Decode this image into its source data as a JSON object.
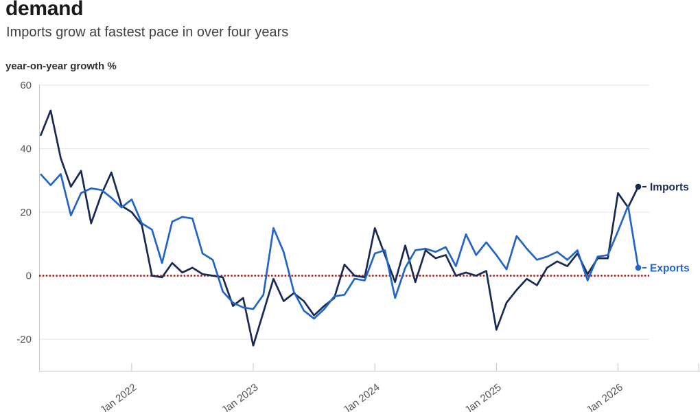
{
  "header": {
    "title": "demand",
    "subtitle": "Imports grow at fastest pace in over four years"
  },
  "chart": {
    "axis_unit_label": "year-on-year growth %"
  },
  "chart_data": {
    "type": "line",
    "title": "demand",
    "subtitle": "Imports grow at fastest pace in over four years",
    "ylabel": "year-on-year growth %",
    "xlabel": "",
    "y_ticks": [
      60,
      40,
      20,
      0,
      -20
    ],
    "ylim": [
      -30,
      62
    ],
    "grid": "horizontal",
    "legend_position": "line-end-labels",
    "zero_line": {
      "style": "dotted",
      "color": "#9d2c28"
    },
    "x_tick_labels": [
      "Jan 2022",
      "Jan 2023",
      "Jan 2024",
      "Jan 2025",
      "Jan 2026"
    ],
    "months": [
      "2021-04",
      "2021-05",
      "2021-06",
      "2021-07",
      "2021-08",
      "2021-09",
      "2021-10",
      "2021-11",
      "2021-12",
      "2022-01",
      "2022-02",
      "2022-03",
      "2022-04",
      "2022-05",
      "2022-06",
      "2022-07",
      "2022-08",
      "2022-09",
      "2022-10",
      "2022-11",
      "2022-12",
      "2023-01",
      "2023-02",
      "2023-03",
      "2023-04",
      "2023-05",
      "2023-06",
      "2023-07",
      "2023-08",
      "2023-09",
      "2023-10",
      "2023-11",
      "2023-12",
      "2024-01",
      "2024-02",
      "2024-03",
      "2024-04",
      "2024-05",
      "2024-06",
      "2024-07",
      "2024-08",
      "2024-09",
      "2024-10",
      "2024-11",
      "2024-12",
      "2025-01",
      "2025-02",
      "2025-03",
      "2025-04",
      "2025-05",
      "2025-06",
      "2025-07",
      "2025-08",
      "2025-09",
      "2025-10",
      "2025-11",
      "2025-12",
      "2026-01",
      "2026-02",
      "2026-03"
    ],
    "series": [
      {
        "name": "Imports",
        "color": "#182a54",
        "values": [
          44,
          52,
          37,
          28,
          33,
          16.5,
          25.5,
          32.5,
          22,
          20,
          16,
          0,
          -0.5,
          4,
          1,
          2.5,
          0.5,
          0,
          -0.5,
          -9.5,
          -7,
          -22,
          -11.5,
          -1,
          -8,
          -5.5,
          -8,
          -12.5,
          -9.5,
          -7,
          3.5,
          0,
          -0.5,
          15,
          6.5,
          -2,
          9.5,
          -2,
          8,
          5.5,
          6.5,
          0,
          1,
          0,
          1.5,
          -17,
          -8.5,
          -4.5,
          -1,
          -3,
          2.5,
          4.5,
          3,
          7,
          0.5,
          5.5,
          5.5,
          26,
          21.5,
          28
        ]
      },
      {
        "name": "Exports",
        "color": "#2364c8",
        "values": [
          32,
          28.5,
          32,
          19,
          26,
          27.5,
          27,
          24.5,
          21.5,
          24,
          16.5,
          14.5,
          4,
          17,
          18.5,
          18,
          7,
          5,
          -5,
          -8.5,
          -10,
          -10.5,
          -6,
          15,
          7.5,
          -5,
          -11,
          -13.5,
          -10.5,
          -6.5,
          -6,
          -1,
          -1.5,
          7,
          8,
          -7,
          2.5,
          8,
          8.5,
          7.5,
          9,
          3,
          13,
          6.5,
          10.5,
          6.5,
          2,
          12.5,
          8.5,
          5,
          6,
          7.5,
          5,
          8,
          -1.5,
          6,
          6.5,
          14,
          22,
          2.5
        ]
      }
    ]
  }
}
